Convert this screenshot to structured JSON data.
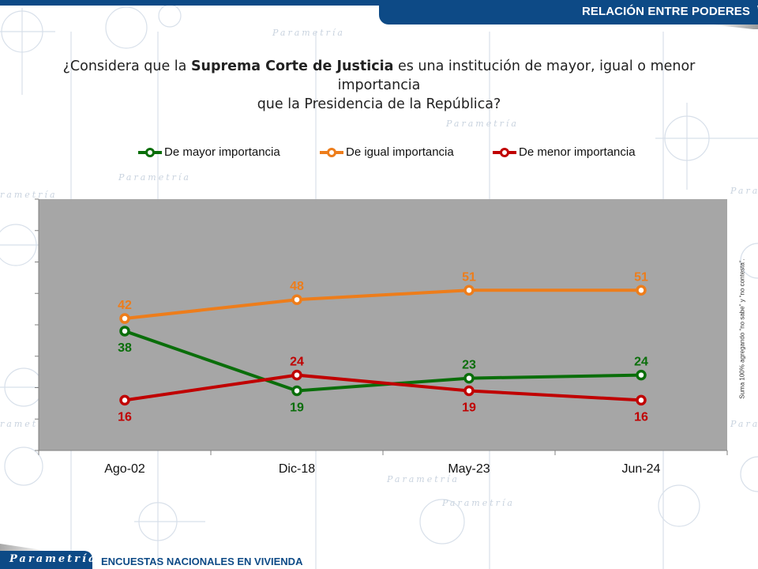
{
  "header": {
    "section_title": "RELACIÓN ENTRE PODERES"
  },
  "question": {
    "part1": "¿Considera que la ",
    "bold": "Suprema Corte de Justicia",
    "part2": " es una institución de mayor, igual o menor importancia",
    "line2": "que la Presidencia de la República?"
  },
  "side_note": "Suma 100% agregando “no sabe” y “no contesta”.",
  "footer": {
    "logo_text": "Parametría",
    "survey_label": "ENCUESTAS NACIONALES EN VIVIENDA"
  },
  "background_watermark": "Parametría",
  "chart_data": {
    "type": "line",
    "title": "",
    "xlabel": "",
    "ylabel": "",
    "categories": [
      "Ago-02",
      "Dic-18",
      "May-23",
      "Jun-24"
    ],
    "ylim": [
      0,
      80
    ],
    "y_tick_step": 10,
    "y_tick_labels_visible": false,
    "grid": false,
    "legend_position": "top",
    "plot_background": "#a6a6a6",
    "series": [
      {
        "name": "De mayor importancia",
        "color": "#0a6e0a",
        "values": [
          38,
          19,
          23,
          24
        ],
        "label_positions": [
          "below",
          "below",
          "above",
          "above"
        ]
      },
      {
        "name": "De igual importancia",
        "color": "#ed7d1b",
        "values": [
          42,
          48,
          51,
          51
        ],
        "label_positions": [
          "above",
          "above",
          "above",
          "above"
        ]
      },
      {
        "name": "De menor importancia",
        "color": "#c00000",
        "values": [
          16,
          24,
          19,
          16
        ],
        "label_positions": [
          "below",
          "above",
          "below",
          "below"
        ]
      }
    ]
  }
}
